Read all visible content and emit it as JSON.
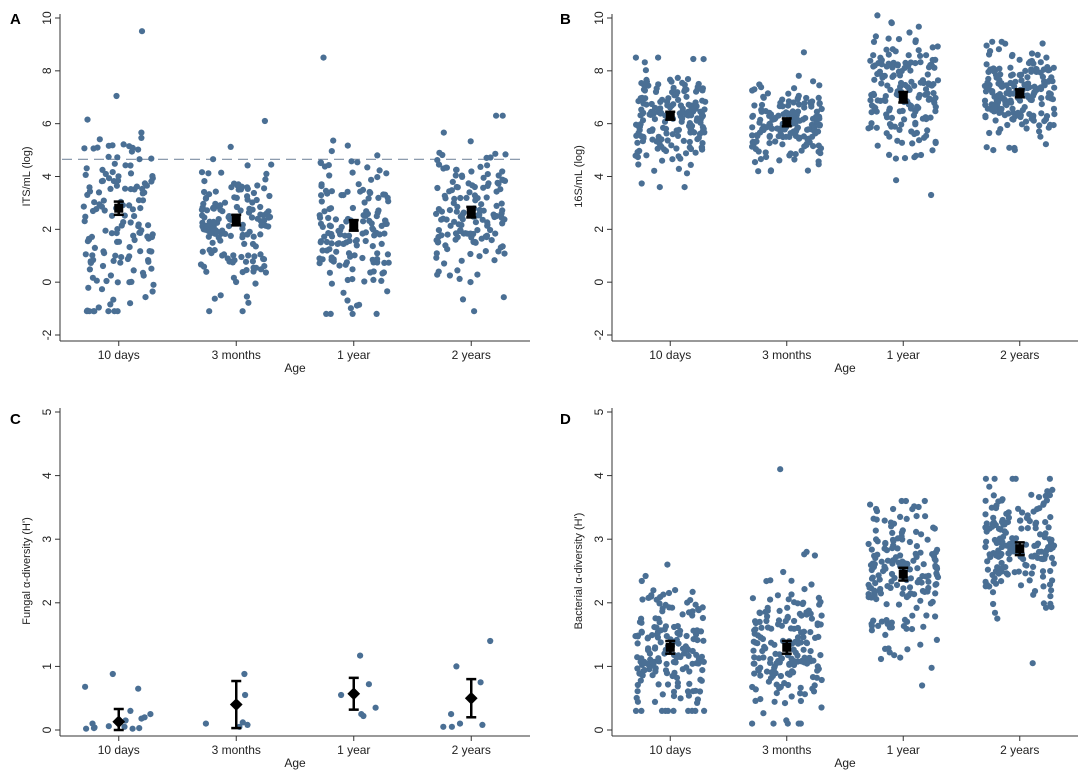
{
  "chart_data": [
    {
      "type": "scatter",
      "panel_label": "A",
      "xlabel": "Age",
      "ylabel": "ITS/mL (log)",
      "categories": [
        "10 days",
        "3 months",
        "1 year",
        "2 years"
      ],
      "yticks": [
        "-2",
        "0",
        "2",
        "4",
        "6",
        "8",
        "10"
      ],
      "ylim": [
        -2,
        10
      ],
      "reference_line": 4.65,
      "series": [
        {
          "name": "10 days",
          "mean": 2.8,
          "ci": [
            2.55,
            3.05
          ],
          "spread": {
            "low": -1.1,
            "high": 9.5,
            "n": 150,
            "center": 2.3,
            "sd": 1.9
          }
        },
        {
          "name": "3 months",
          "mean": 2.35,
          "ci": [
            2.15,
            2.55
          ],
          "spread": {
            "low": -1.1,
            "high": 6.1,
            "n": 150,
            "center": 2.2,
            "sd": 1.3
          }
        },
        {
          "name": "1 year",
          "mean": 2.15,
          "ci": [
            1.95,
            2.35
          ],
          "spread": {
            "low": -1.2,
            "high": 8.5,
            "n": 150,
            "center": 2.1,
            "sd": 1.4
          }
        },
        {
          "name": "2 years",
          "mean": 2.65,
          "ci": [
            2.45,
            2.85
          ],
          "spread": {
            "low": -1.1,
            "high": 6.3,
            "n": 150,
            "center": 2.5,
            "sd": 1.5
          }
        }
      ]
    },
    {
      "type": "scatter",
      "panel_label": "B",
      "xlabel": "Age",
      "ylabel": "16S/mL (log)",
      "categories": [
        "10 days",
        "3 months",
        "1 year",
        "2 years"
      ],
      "yticks": [
        "-2",
        "0",
        "2",
        "4",
        "6",
        "8",
        "10"
      ],
      "ylim": [
        -2,
        10
      ],
      "series": [
        {
          "name": "10 days",
          "mean": 6.3,
          "ci": [
            6.15,
            6.45
          ],
          "spread": {
            "low": 3.6,
            "high": 8.5,
            "n": 180,
            "center": 6.3,
            "sd": 0.9
          }
        },
        {
          "name": "3 months",
          "mean": 6.05,
          "ci": [
            5.9,
            6.2
          ],
          "spread": {
            "low": 4.2,
            "high": 8.7,
            "n": 170,
            "center": 6.0,
            "sd": 0.85
          }
        },
        {
          "name": "1 year",
          "mean": 7.0,
          "ci": [
            6.8,
            7.2
          ],
          "spread": {
            "low": 3.3,
            "high": 10.1,
            "n": 170,
            "center": 7.0,
            "sd": 1.2
          }
        },
        {
          "name": "2 years",
          "mean": 7.15,
          "ci": [
            7.0,
            7.3
          ],
          "spread": {
            "low": 5.0,
            "high": 9.1,
            "n": 190,
            "center": 7.1,
            "sd": 0.9
          }
        }
      ]
    },
    {
      "type": "scatter",
      "panel_label": "C",
      "xlabel": "Age",
      "ylabel": "Fungal α-diversity (H')",
      "categories": [
        "10 days",
        "3 months",
        "1 year",
        "2 years"
      ],
      "yticks": [
        "0",
        "1",
        "2",
        "3",
        "4",
        "5"
      ],
      "ylim": [
        0,
        5
      ],
      "series": [
        {
          "name": "10 days",
          "mean": 0.13,
          "ci": [
            0.0,
            0.33
          ],
          "points": [
            0.02,
            0.03,
            0.05,
            0.04,
            0.06,
            0.1,
            0.15,
            0.18,
            0.2,
            0.25,
            0.3,
            0.65,
            0.68,
            0.88,
            0.02,
            0.03
          ]
        },
        {
          "name": "3 months",
          "mean": 0.4,
          "ci": [
            0.03,
            0.77
          ],
          "points": [
            0.88,
            0.55,
            0.12,
            0.1,
            0.08,
            0.05
          ]
        },
        {
          "name": "1 year",
          "mean": 0.57,
          "ci": [
            0.32,
            0.82
          ],
          "points": [
            1.17,
            0.72,
            0.55,
            0.35,
            0.25,
            0.22
          ]
        },
        {
          "name": "2 years",
          "mean": 0.5,
          "ci": [
            0.2,
            0.8
          ],
          "points": [
            1.4,
            1.0,
            0.75,
            0.25,
            0.1,
            0.08,
            0.05,
            0.05
          ]
        }
      ]
    },
    {
      "type": "scatter",
      "panel_label": "D",
      "xlabel": "Age",
      "ylabel": "Bacterial α-diversity (H')",
      "categories": [
        "10 days",
        "3 months",
        "1 year",
        "2 years"
      ],
      "yticks": [
        "0",
        "1",
        "2",
        "3",
        "4",
        "5"
      ],
      "ylim": [
        0,
        5
      ],
      "series": [
        {
          "name": "10 days",
          "mean": 1.3,
          "ci": [
            1.2,
            1.4
          ],
          "spread": {
            "low": 0.3,
            "high": 2.6,
            "n": 180,
            "center": 1.3,
            "sd": 0.5
          }
        },
        {
          "name": "3 months",
          "mean": 1.3,
          "ci": [
            1.2,
            1.4
          ],
          "spread": {
            "low": 0.1,
            "high": 2.8,
            "n": 180,
            "center": 1.25,
            "sd": 0.55
          },
          "outlier": 4.1
        },
        {
          "name": "1 year",
          "mean": 2.45,
          "ci": [
            2.35,
            2.55
          ],
          "spread": {
            "low": 0.7,
            "high": 3.6,
            "n": 180,
            "center": 2.45,
            "sd": 0.55
          }
        },
        {
          "name": "2 years",
          "mean": 2.85,
          "ci": [
            2.75,
            2.95
          ],
          "spread": {
            "low": 1.05,
            "high": 3.95,
            "n": 180,
            "center": 2.85,
            "sd": 0.5
          }
        }
      ]
    }
  ]
}
